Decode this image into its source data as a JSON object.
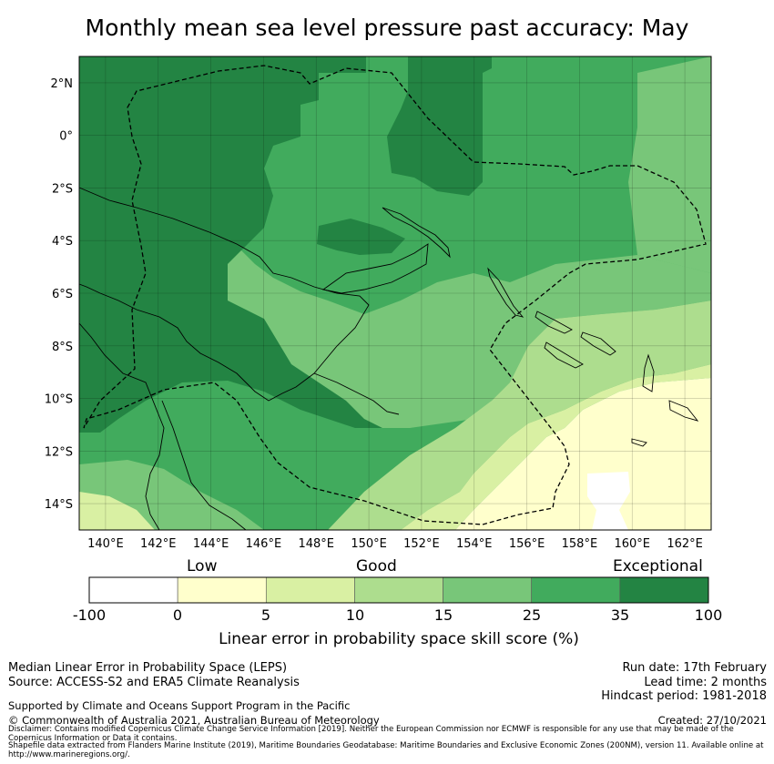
{
  "title": "Monthly mean sea level pressure past accuracy: May",
  "map": {
    "lat_labels": [
      "2°N",
      "0°",
      "2°S",
      "4°S",
      "6°S",
      "8°S",
      "10°S",
      "12°S",
      "14°S"
    ],
    "lon_labels": [
      "140°E",
      "142°E",
      "144°E",
      "146°E",
      "148°E",
      "150°E",
      "152°E",
      "154°E",
      "156°E",
      "158°E",
      "160°E",
      "162°E"
    ],
    "lon_range": [
      139,
      163
    ],
    "lat_range": [
      -15,
      3
    ],
    "region": "Papua New Guinea and Solomon Islands"
  },
  "colorbar": {
    "category_labels": [
      "Low",
      "Good",
      "Exceptional"
    ],
    "tick_labels": [
      "-100",
      "0",
      "5",
      "10",
      "15",
      "25",
      "35",
      "100"
    ],
    "colors": [
      "#ffffff",
      "#ffffcc",
      "#d9f0a3",
      "#addd8e",
      "#78c679",
      "#41ab5d",
      "#238443"
    ],
    "title": "Linear error in probability space skill score (%)"
  },
  "footer": {
    "left": [
      "Median Linear Error in Probability Space (LEPS)",
      "Source: ACCESS-S2 and ERA5 Climate Reanalysis"
    ],
    "support": "Supported by Climate and Oceans Support Program in the Pacific",
    "copyright": "© Commonwealth of Australia 2021, Australian Bureau of Meteorology",
    "right": [
      "Run date: 17th February",
      "Lead time: 2 months",
      "Hindcast period: 1981-2018"
    ],
    "created": "Created: 27/10/2021",
    "disclaimer": "Disclaimer: Contains modified Copernicus Climate Change Service Information [2019]. Neither the European Commission nor ECMWF is responsible for any use that may be made of the Copernicus Information or Data it contains.",
    "shapefile": "Shapefile data extracted from Flanders Marine Institute (2019), Maritime Boundaries Geodatabase: Maritime Boundaries and Exclusive Economic Zones (200NM), version 11. Available online at http://www.marineregions.org/."
  }
}
